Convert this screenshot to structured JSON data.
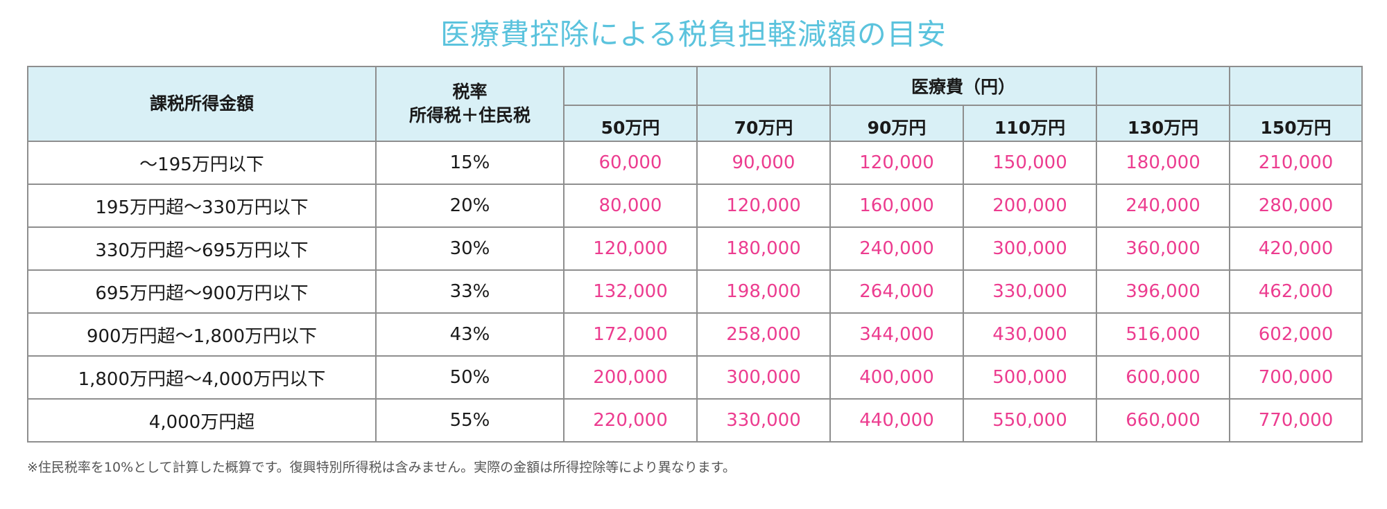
{
  "title": "医療費控除による税負担軽減額の目安",
  "table": {
    "header_range": "課税所得金額",
    "header_rate_line1": "税率",
    "header_rate_line2": "所得税＋住民税",
    "header_medical": "医療費（円）",
    "medical_columns": [
      "50万円",
      "70万円",
      "90万円",
      "110万円",
      "130万円",
      "150万円"
    ],
    "rows": [
      {
        "range": "～195万円以下",
        "rate": "15%",
        "amounts": [
          "60,000",
          "90,000",
          "120,000",
          "150,000",
          "180,000",
          "210,000"
        ]
      },
      {
        "range": "195万円超～330万円以下",
        "rate": "20%",
        "amounts": [
          "80,000",
          "120,000",
          "160,000",
          "200,000",
          "240,000",
          "280,000"
        ]
      },
      {
        "range": "330万円超～695万円以下",
        "rate": "30%",
        "amounts": [
          "120,000",
          "180,000",
          "240,000",
          "300,000",
          "360,000",
          "420,000"
        ]
      },
      {
        "range": "695万円超～900万円以下",
        "rate": "33%",
        "amounts": [
          "132,000",
          "198,000",
          "264,000",
          "330,000",
          "396,000",
          "462,000"
        ]
      },
      {
        "range": "900万円超～1,800万円以下",
        "rate": "43%",
        "amounts": [
          "172,000",
          "258,000",
          "344,000",
          "430,000",
          "516,000",
          "602,000"
        ]
      },
      {
        "range": "1,800万円超～4,000万円以下",
        "rate": "50%",
        "amounts": [
          "200,000",
          "300,000",
          "400,000",
          "500,000",
          "600,000",
          "700,000"
        ]
      },
      {
        "range": "4,000万円超",
        "rate": "55%",
        "amounts": [
          "220,000",
          "330,000",
          "440,000",
          "550,000",
          "660,000",
          "770,000"
        ]
      }
    ]
  },
  "note": "※住民税率を10%として計算した概算です。復興特別所得税は含みません。実際の金額は所得控除等により異なります。",
  "colors": {
    "title": "#5bc3dd",
    "header_bg": "#d9f0f6",
    "amount": "#ec3c8f",
    "border": "#8e8e8e"
  }
}
